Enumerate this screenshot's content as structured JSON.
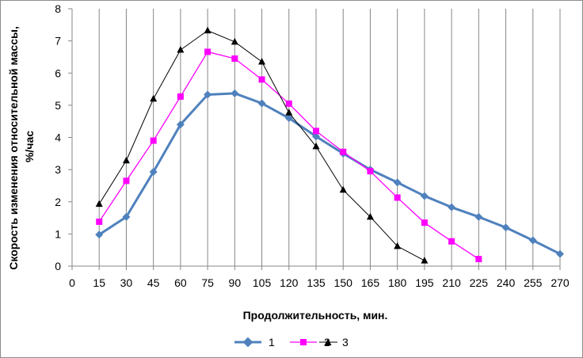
{
  "chart_data": {
    "type": "line",
    "title": "",
    "xlabel": "Продолжительность, мин.",
    "ylabel_line1": "Скорость изменения относительной массы,",
    "ylabel_line2": "%/час",
    "x_ticks": [
      0,
      15,
      30,
      45,
      60,
      75,
      90,
      105,
      120,
      135,
      150,
      165,
      180,
      195,
      210,
      225,
      240,
      255,
      270
    ],
    "y_ticks": [
      0,
      1,
      2,
      3,
      4,
      5,
      6,
      7,
      8
    ],
    "xlim": [
      0,
      270
    ],
    "ylim": [
      0,
      8
    ],
    "grid": "vertical",
    "legend_position": "bottom",
    "series": [
      {
        "name": "1",
        "color": "#4F81BD",
        "marker": "diamond",
        "x": [
          15,
          30,
          45,
          60,
          75,
          90,
          105,
          120,
          135,
          150,
          165,
          180,
          195,
          210,
          225,
          240,
          255,
          270
        ],
        "y": [
          0.98,
          1.53,
          2.93,
          4.4,
          5.33,
          5.37,
          5.06,
          4.6,
          4.03,
          3.5,
          3.0,
          2.6,
          2.18,
          1.83,
          1.53,
          1.2,
          0.8,
          0.38
        ]
      },
      {
        "name": "2",
        "color": "#FF00FF",
        "marker": "square",
        "x": [
          15,
          30,
          45,
          60,
          75,
          90,
          105,
          120,
          135,
          150,
          165,
          180,
          195,
          210,
          225
        ],
        "y": [
          1.38,
          2.65,
          3.9,
          5.27,
          6.66,
          6.45,
          5.8,
          5.05,
          4.2,
          3.55,
          2.95,
          2.13,
          1.35,
          0.77,
          0.22
        ]
      },
      {
        "name": "3",
        "color": "#000000",
        "marker": "triangle",
        "x": [
          15,
          30,
          45,
          60,
          75,
          90,
          105,
          120,
          135,
          150,
          165,
          180,
          195
        ],
        "y": [
          1.93,
          3.28,
          5.2,
          6.72,
          7.32,
          6.97,
          6.35,
          4.77,
          3.72,
          2.37,
          1.53,
          0.62,
          0.17
        ]
      }
    ]
  }
}
